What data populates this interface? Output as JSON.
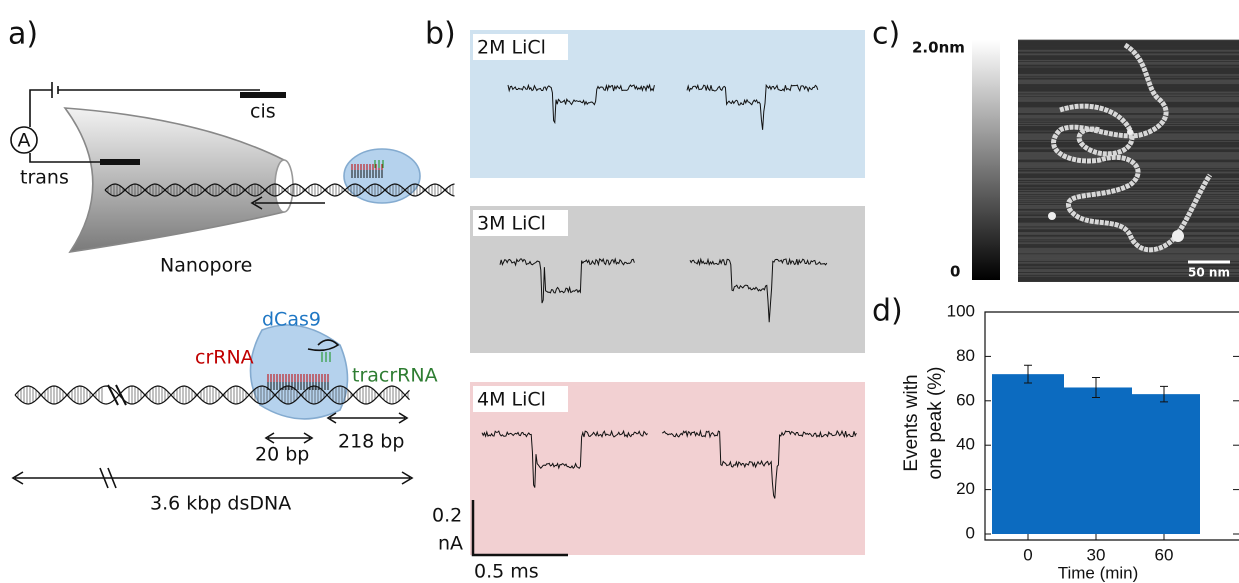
{
  "panel_labels": [
    "a)",
    "b)",
    "c)",
    "d)"
  ],
  "schematic": {
    "ammeter": "A",
    "cis": "cis",
    "trans": "trans",
    "nanopore": "Nanopore",
    "dcas9": "dCas9",
    "crrna": "crRNA",
    "tracrrna": "tracrRNA",
    "short_span": "20 bp",
    "long_span": "218 bp",
    "dna_length": "3.6 kbp dsDNA"
  },
  "traces": {
    "conditions": [
      "2M LiCl",
      "3M LiCl",
      "4M LiCl"
    ],
    "current_scale": [
      "0.2",
      "nA"
    ],
    "time_scale": "0.5 ms"
  },
  "afm": {
    "colorbar_max": "2.0nm",
    "colorbar_min": "0",
    "scale_bar": "50 nm"
  },
  "chart_data": {
    "type": "bar",
    "categories": [
      "0",
      "30",
      "60"
    ],
    "values": [
      72,
      66,
      63
    ],
    "errors": [
      4,
      4.5,
      3.5
    ],
    "color": "#0c6bc0",
    "ylim": [
      0,
      100
    ],
    "yticks": [
      0,
      20,
      40,
      60,
      80,
      100
    ],
    "xlabel": "Time (min)",
    "ylabel": [
      "Events with",
      "one peak (%)"
    ]
  }
}
